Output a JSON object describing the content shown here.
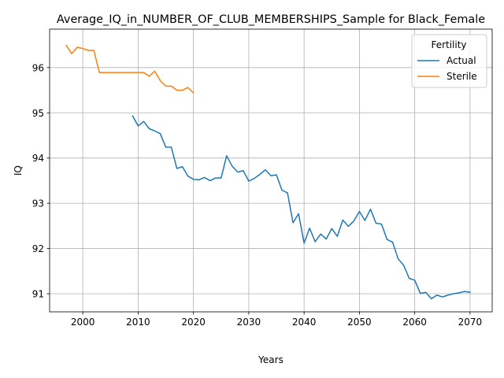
{
  "chart_data": {
    "type": "line",
    "title": "Average_IQ_in_NUMBER_OF_CLUB_MEMBERSHIPS_Sample for Black_Female",
    "xlabel": "Years",
    "ylabel": "IQ",
    "xlim": [
      1994,
      2074
    ],
    "ylim": [
      90.6,
      96.85
    ],
    "xticks": [
      2000,
      2010,
      2020,
      2030,
      2040,
      2050,
      2060,
      2070
    ],
    "yticks": [
      91,
      92,
      93,
      94,
      95,
      96
    ],
    "grid": true,
    "legend": {
      "title": "Fertility",
      "placement": "top-right"
    },
    "series": [
      {
        "name": "Actual",
        "color": "#1f77b4",
        "x": [
          2009,
          2010,
          2011,
          2012,
          2013,
          2014,
          2015,
          2016,
          2017,
          2018,
          2019,
          2020,
          2021,
          2022,
          2023,
          2024,
          2025,
          2026,
          2027,
          2028,
          2029,
          2030,
          2031,
          2032,
          2033,
          2034,
          2035,
          2036,
          2037,
          2038,
          2039,
          2040,
          2041,
          2042,
          2043,
          2044,
          2045,
          2046,
          2047,
          2048,
          2049,
          2050,
          2051,
          2052,
          2053,
          2054,
          2055,
          2056,
          2057,
          2058,
          2059,
          2060,
          2061,
          2062,
          2063,
          2064,
          2065,
          2066,
          2067,
          2068,
          2069,
          2070
        ],
        "y": [
          94.93,
          94.71,
          94.81,
          94.65,
          94.6,
          94.54,
          94.24,
          94.24,
          93.77,
          93.81,
          93.6,
          93.53,
          93.52,
          93.57,
          93.5,
          93.56,
          93.56,
          94.05,
          93.82,
          93.69,
          93.72,
          93.49,
          93.55,
          93.64,
          93.74,
          93.61,
          93.63,
          93.29,
          93.23,
          92.57,
          92.77,
          92.12,
          92.45,
          92.15,
          92.32,
          92.21,
          92.44,
          92.27,
          92.63,
          92.49,
          92.61,
          92.82,
          92.62,
          92.87,
          92.56,
          92.54,
          92.2,
          92.14,
          91.77,
          91.63,
          91.34,
          91.3,
          91.01,
          91.03,
          90.89,
          90.97,
          90.93,
          90.97,
          91.0,
          91.02,
          91.05,
          91.03
        ]
      },
      {
        "name": "Sterile",
        "color": "#ff7f0e",
        "x": [
          1997,
          1998,
          1999,
          2000,
          2001,
          2002,
          2003,
          2004,
          2005,
          2006,
          2007,
          2008,
          2009,
          2010,
          2011,
          2012,
          2013,
          2014,
          2015,
          2016,
          2017,
          2018,
          2019,
          2020
        ],
        "y": [
          96.49,
          96.31,
          96.45,
          96.42,
          96.38,
          96.38,
          95.89,
          95.89,
          95.89,
          95.89,
          95.89,
          95.89,
          95.89,
          95.89,
          95.89,
          95.81,
          95.92,
          95.71,
          95.59,
          95.59,
          95.5,
          95.5,
          95.56,
          95.44
        ]
      }
    ]
  }
}
